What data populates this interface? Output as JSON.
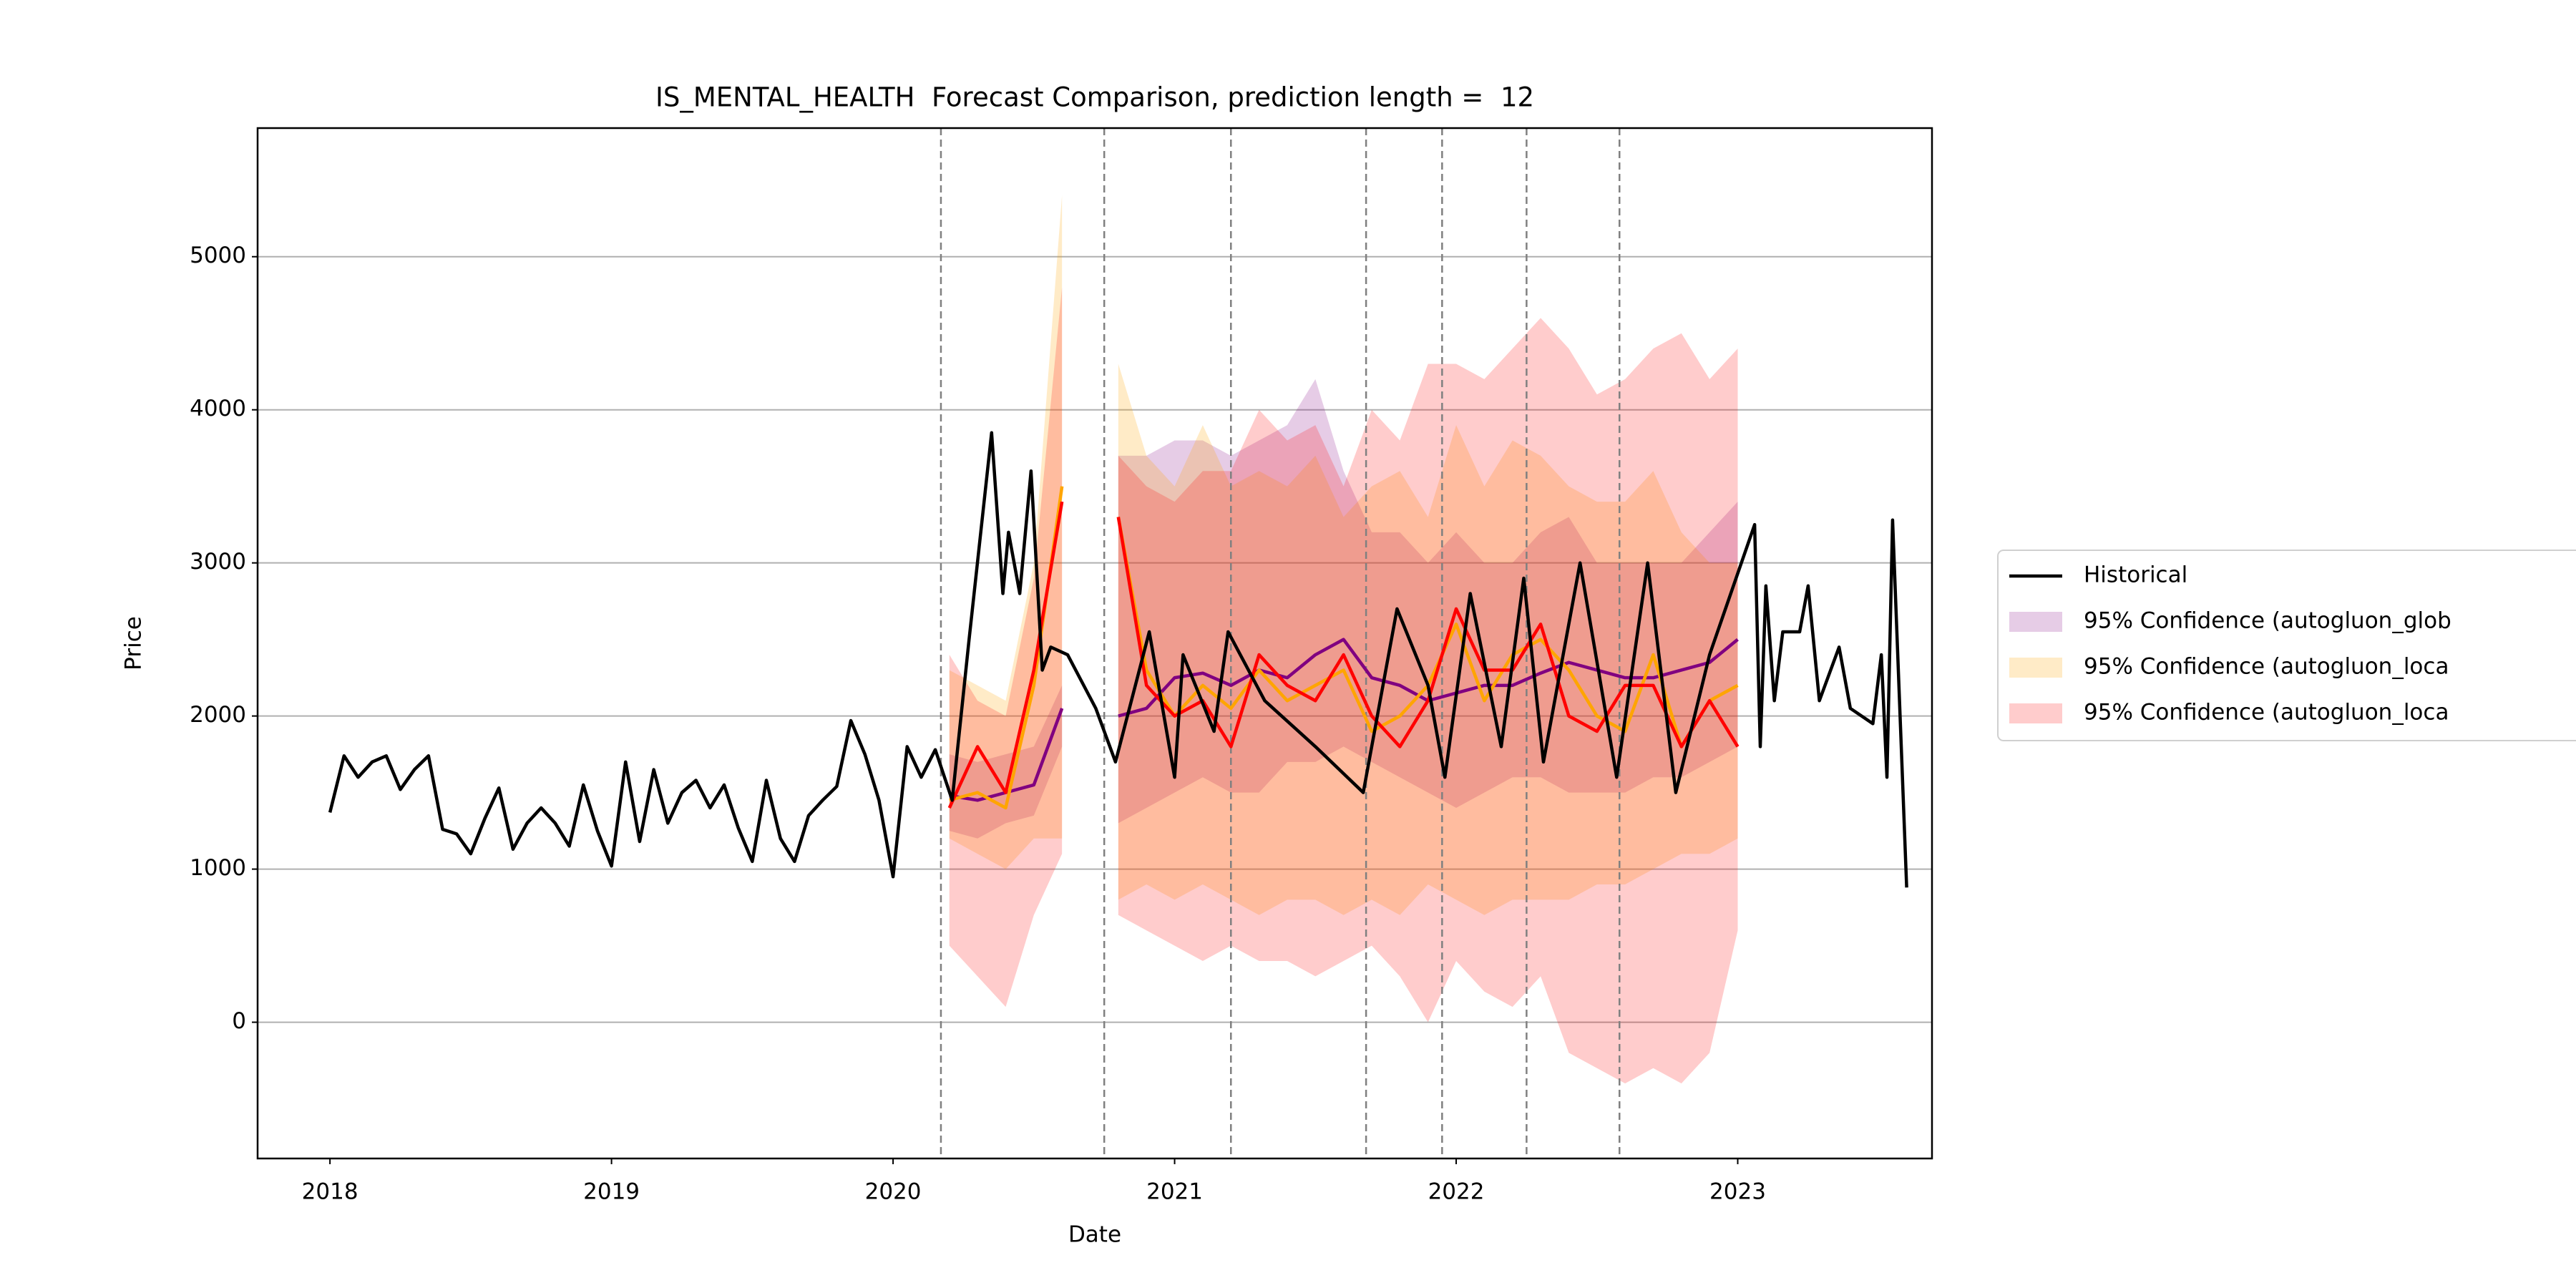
{
  "chart_data": {
    "type": "line",
    "title": "IS_MENTAL_HEALTH  Forecast Comparison, prediction length =  12",
    "xlabel": "Date",
    "ylabel": "Price",
    "xlim": [
      2017.743,
      2023.69
    ],
    "ylim": [
      -890,
      5840
    ],
    "xticks": [
      2018,
      2019,
      2020,
      2021,
      2022,
      2023
    ],
    "yticks": [
      0,
      1000,
      2000,
      3000,
      4000,
      5000
    ],
    "grid": "y",
    "legend": "outside right",
    "vlines": [
      2020.17,
      2020.75,
      2021.2,
      2021.68,
      2021.95,
      2022.25,
      2022.58
    ],
    "vline_color": "#808080",
    "series": [
      {
        "name": "Historical",
        "color": "#000000",
        "x": [
          2018.0,
          2018.05,
          2018.1,
          2018.15,
          2018.2,
          2018.25,
          2018.3,
          2018.35,
          2018.4,
          2018.45,
          2018.5,
          2018.55,
          2018.6,
          2018.65,
          2018.7,
          2018.75,
          2018.8,
          2018.85,
          2018.9,
          2018.95,
          2019.0,
          2019.05,
          2019.1,
          2019.15,
          2019.2,
          2019.25,
          2019.3,
          2019.35,
          2019.4,
          2019.45,
          2019.5,
          2019.55,
          2019.6,
          2019.65,
          2019.7,
          2019.75,
          2019.8,
          2019.85,
          2019.9,
          2019.95,
          2020.0,
          2020.05,
          2020.1,
          2020.15,
          2020.21,
          2020.27,
          2020.35,
          2020.39,
          2020.41,
          2020.45,
          2020.49,
          2020.53,
          2020.56,
          2020.62,
          2020.72,
          2020.79,
          2020.91,
          2021.0,
          2021.03,
          2021.14,
          2021.19,
          2021.32,
          2021.5,
          2021.67,
          2021.79,
          2021.9,
          2021.96,
          2022.05,
          2022.16,
          2022.24,
          2022.31,
          2022.44,
          2022.57,
          2022.68,
          2022.78,
          2022.9,
          2023.06,
          2023.08,
          2023.1,
          2023.13,
          2023.16,
          2023.22,
          2023.25,
          2023.29,
          2023.36,
          2023.4,
          2023.48,
          2023.51,
          2023.53,
          2023.55,
          2023.6
        ],
        "values": [
          1370,
          1740,
          1600,
          1700,
          1740,
          1520,
          1650,
          1740,
          1260,
          1230,
          1100,
          1330,
          1530,
          1130,
          1300,
          1400,
          1300,
          1150,
          1550,
          1250,
          1020,
          1700,
          1180,
          1650,
          1300,
          1500,
          1580,
          1400,
          1550,
          1270,
          1050,
          1580,
          1200,
          1050,
          1350,
          1450,
          1540,
          1970,
          1750,
          1450,
          950,
          1800,
          1600,
          1780,
          1450,
          2500,
          3850,
          2800,
          3200,
          2800,
          3600,
          2300,
          2450,
          2400,
          2050,
          1700,
          2550,
          1600,
          2400,
          1900,
          2550,
          2100,
          1800,
          1500,
          2700,
          2200,
          1600,
          2800,
          1800,
          2900,
          1700,
          3000,
          1600,
          3000,
          1500,
          2400,
          3250,
          1800,
          2850,
          2100,
          2550,
          2550,
          2850,
          2100,
          2450,
          2050,
          1950,
          2400,
          1600,
          3280,
          880
        ]
      }
    ],
    "bands": [
      {
        "name": "95% Confidence (autogluon_glob",
        "color": "#800080",
        "opacity": 0.2,
        "line_color": "#800080",
        "x": [
          2020.2,
          2020.3,
          2020.4,
          2020.5,
          2020.6,
          2020.7,
          2020.8,
          2020.9,
          2021.0,
          2021.1,
          2021.2,
          2021.3,
          2021.4,
          2021.5,
          2021.6,
          2021.7,
          2021.8,
          2021.9,
          2022.0,
          2022.1,
          2022.2,
          2022.3,
          2022.4,
          2022.5,
          2022.6,
          2022.7,
          2022.8,
          2022.9,
          2023.0
        ],
        "values": [
          1480,
          1450,
          1500,
          1550,
          2050,
          null,
          2000,
          2050,
          2250,
          2280,
          2200,
          2300,
          2250,
          2400,
          2500,
          2250,
          2200,
          2100,
          2150,
          2200,
          2200,
          2280,
          2350,
          2300,
          2250,
          2250,
          2300,
          2350,
          2500
        ],
        "lower": [
          1250,
          1200,
          1300,
          1350,
          1800,
          null,
          1300,
          1400,
          1500,
          1600,
          1500,
          1500,
          1700,
          1700,
          1800,
          1700,
          1600,
          1500,
          1400,
          1500,
          1600,
          1600,
          1500,
          1500,
          1500,
          1600,
          1600,
          1700,
          1800
        ],
        "upper": [
          1750,
          1700,
          1750,
          1800,
          2200,
          null,
          3700,
          3700,
          3800,
          3800,
          3700,
          3800,
          3900,
          4200,
          3600,
          3200,
          3200,
          3000,
          3200,
          3000,
          3000,
          3200,
          3300,
          3000,
          3000,
          3000,
          3000,
          3200,
          3400
        ]
      },
      {
        "name": "95% Confidence (autogluon_loca",
        "color": "#ffa500",
        "opacity": 0.22,
        "line_color": "#ffa500",
        "x": [
          2020.2,
          2020.3,
          2020.4,
          2020.5,
          2020.6,
          2020.7,
          2020.8,
          2020.9,
          2021.0,
          2021.1,
          2021.2,
          2021.3,
          2021.4,
          2021.5,
          2021.6,
          2021.7,
          2021.8,
          2021.9,
          2022.0,
          2022.1,
          2022.2,
          2022.3,
          2022.4,
          2022.5,
          2022.6,
          2022.7,
          2022.8,
          2022.9,
          2023.0
        ],
        "values": [
          1450,
          1500,
          1400,
          2200,
          3500,
          null,
          3300,
          2300,
          2000,
          2200,
          2050,
          2300,
          2100,
          2200,
          2300,
          1900,
          2000,
          2200,
          2600,
          2100,
          2400,
          2500,
          2300,
          2000,
          1900,
          2400,
          1800,
          2100,
          2200
        ],
        "lower": [
          1200,
          1100,
          1000,
          1200,
          1200,
          null,
          800,
          900,
          800,
          900,
          800,
          700,
          800,
          800,
          700,
          800,
          700,
          900,
          800,
          700,
          800,
          800,
          800,
          900,
          900,
          1000,
          1100,
          1100,
          1200
        ],
        "upper": [
          2300,
          2200,
          2100,
          3000,
          5400,
          null,
          4300,
          3700,
          3500,
          3900,
          3500,
          3600,
          3500,
          3700,
          3300,
          3500,
          3600,
          3300,
          3900,
          3500,
          3800,
          3700,
          3500,
          3400,
          3400,
          3600,
          3200,
          3000,
          3000
        ]
      },
      {
        "name": "95% Confidence (autogluon_loca",
        "color": "#ff0000",
        "opacity": 0.2,
        "line_color": "#ff0000",
        "x": [
          2020.2,
          2020.3,
          2020.4,
          2020.5,
          2020.6,
          2020.7,
          2020.8,
          2020.9,
          2021.0,
          2021.1,
          2021.2,
          2021.3,
          2021.4,
          2021.5,
          2021.6,
          2021.7,
          2021.8,
          2021.9,
          2022.0,
          2022.1,
          2022.2,
          2022.3,
          2022.4,
          2022.5,
          2022.6,
          2022.7,
          2022.8,
          2022.9,
          2023.0
        ],
        "values": [
          1400,
          1800,
          1500,
          2300,
          3400,
          null,
          3300,
          2200,
          2000,
          2100,
          1800,
          2400,
          2200,
          2100,
          2400,
          2000,
          1800,
          2100,
          2700,
          2300,
          2300,
          2600,
          2000,
          1900,
          2200,
          2200,
          1800,
          2100,
          1800
        ],
        "lower": [
          500,
          300,
          100,
          700,
          1100,
          null,
          700,
          600,
          500,
          400,
          500,
          400,
          400,
          300,
          400,
          500,
          300,
          0,
          400,
          200,
          100,
          300,
          -200,
          -300,
          -400,
          -300,
          -400,
          -200,
          600
        ],
        "upper": [
          2400,
          2100,
          2000,
          2900,
          4800,
          null,
          3700,
          3500,
          3400,
          3600,
          3600,
          4000,
          3800,
          3900,
          3500,
          4000,
          3800,
          4300,
          4300,
          4200,
          4400,
          4600,
          4400,
          4100,
          4200,
          4400,
          4500,
          4200,
          4400
        ]
      }
    ]
  }
}
